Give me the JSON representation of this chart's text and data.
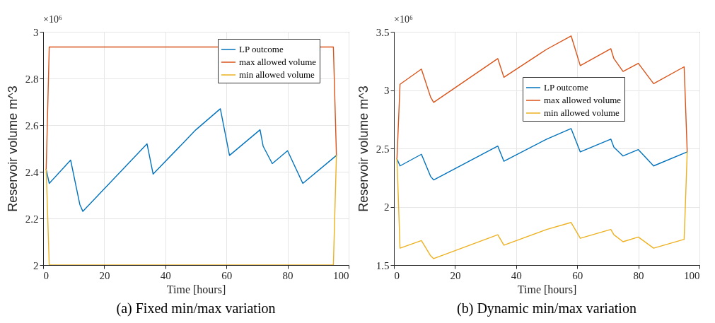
{
  "chart_data": [
    {
      "type": "line",
      "title": "(a) Fixed min/max variation",
      "xlabel": "Time [hours]",
      "ylabel": "Reservoir volume m^3",
      "annotations": [
        "×10⁶"
      ],
      "xlim": [
        0,
        100
      ],
      "xticks": [
        0,
        20,
        40,
        60,
        80,
        100
      ],
      "ylim": [
        2,
        3
      ],
      "yticks": [
        2,
        2.2,
        2.4,
        2.6,
        2.8,
        3
      ],
      "grid": true,
      "legend": "top right",
      "series": [
        {
          "name": "LP outcome",
          "color": "#0072bd",
          "x": [
            1,
            2,
            9,
            12,
            13,
            34,
            36,
            50,
            58,
            61,
            71,
            72,
            75,
            80,
            85,
            96
          ],
          "values": [
            2.41,
            2.35,
            2.45,
            2.26,
            2.23,
            2.52,
            2.39,
            2.58,
            2.67,
            2.47,
            2.58,
            2.51,
            2.435,
            2.49,
            2.35,
            2.47
          ]
        },
        {
          "name": "max allowed volume",
          "color": "#d95319",
          "x": [
            1,
            2,
            95,
            96
          ],
          "values": [
            2.41,
            2.935,
            2.935,
            2.47
          ]
        },
        {
          "name": "min allowed volume",
          "color": "#edb120",
          "x": [
            1,
            2,
            95,
            96
          ],
          "values": [
            2.41,
            2.0,
            2.0,
            2.47
          ]
        }
      ]
    },
    {
      "type": "line",
      "title": "(b) Dynamic min/max variation",
      "xlabel": "Time [hours]",
      "ylabel": "Reservoir volume m^3",
      "annotations": [
        "×10⁶"
      ],
      "xlim": [
        0,
        100
      ],
      "xticks": [
        0,
        20,
        40,
        60,
        80,
        100
      ],
      "ylim": [
        1.5,
        3.5
      ],
      "yticks": [
        1.5,
        2,
        2.5,
        3,
        3.5
      ],
      "grid": true,
      "legend": "right",
      "series": [
        {
          "name": "LP outcome",
          "color": "#0072bd",
          "x": [
            1,
            2,
            9,
            12,
            13,
            34,
            36,
            50,
            58,
            61,
            71,
            72,
            75,
            80,
            85,
            96
          ],
          "values": [
            2.41,
            2.35,
            2.45,
            2.26,
            2.23,
            2.52,
            2.39,
            2.58,
            2.67,
            2.47,
            2.58,
            2.51,
            2.435,
            2.49,
            2.35,
            2.47
          ]
        },
        {
          "name": "max allowed volume",
          "color": "#d95319",
          "x": [
            1,
            2,
            9,
            12,
            13,
            34,
            36,
            50,
            58,
            61,
            71,
            72,
            75,
            80,
            85,
            95,
            96
          ],
          "values": [
            2.41,
            3.05,
            3.18,
            2.94,
            2.895,
            3.27,
            3.11,
            3.35,
            3.465,
            3.21,
            3.355,
            3.27,
            3.16,
            3.23,
            3.055,
            3.2,
            2.47
          ]
        },
        {
          "name": "min allowed volume",
          "color": "#edb120",
          "x": [
            1,
            2,
            9,
            12,
            13,
            34,
            36,
            50,
            58,
            61,
            71,
            72,
            75,
            80,
            85,
            95,
            96
          ],
          "values": [
            2.41,
            1.645,
            1.71,
            1.58,
            1.555,
            1.76,
            1.67,
            1.805,
            1.865,
            1.73,
            1.805,
            1.76,
            1.7,
            1.74,
            1.645,
            1.72,
            2.47
          ]
        }
      ]
    }
  ]
}
